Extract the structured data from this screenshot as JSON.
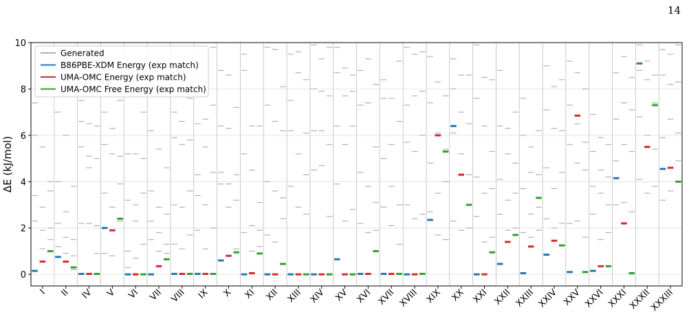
{
  "page_number": "14",
  "chart_data": {
    "type": "energy-levels",
    "ylabel": "ΔE (kJ/mol)",
    "categories": [
      "I",
      "II",
      "IV",
      "V",
      "VI",
      "VII",
      "VIII",
      "IX",
      "X",
      "XI",
      "XII",
      "XIII",
      "XIV",
      "XV",
      "XVI",
      "XVII",
      "XVIII",
      "XIX",
      "XX",
      "XXI",
      "XXII",
      "XXIII",
      "XXIV",
      "XXV",
      "XXVI",
      "XXXI",
      "XXXII",
      "XXXIII"
    ],
    "ylim": [
      -0.5,
      10
    ],
    "yticks": [
      0,
      2,
      4,
      6,
      8,
      10
    ],
    "grid": true,
    "legend": "upper left",
    "series": [
      {
        "name": "Generated",
        "color": "#b0b0b0",
        "values": [
          [
            [
              7.4,
              6.0,
              3.4,
              2.3
            ],
            [
              5.5,
              2.9,
              1.9,
              1.1
            ],
            [
              4.0,
              3.6,
              2.0,
              1.5
            ]
          ],
          [
            [
              7.0,
              4.0,
              2.2,
              1.2
            ],
            [
              6.0,
              2.7,
              1.6,
              0.9
            ],
            [
              3.8,
              1.5,
              0.8,
              0.2
            ]
          ],
          [
            [
              7.5,
              6.6,
              5.5,
              2.2
            ],
            [
              6.5,
              5.1,
              4.6,
              2.2
            ],
            [
              6.4,
              5.0,
              2.1,
              0.9
            ]
          ],
          [
            [
              7.0,
              5.6,
              3.5,
              0.9
            ],
            [
              6.3,
              5.2,
              2.9,
              0.8
            ],
            [
              7.5,
              5.1,
              3.9,
              2.3
            ]
          ],
          [
            [
              5.2,
              3.2,
              1.0,
              0.3
            ],
            [
              5.2,
              3.0,
              2.3,
              0.7
            ],
            [
              7.0,
              5.0,
              3.5,
              1.3
            ]
          ],
          [
            [
              6.2,
              3.6,
              2.3,
              1.5
            ],
            [
              5.4,
              2.9,
              1.8,
              1.0
            ],
            [
              4.6,
              2.6,
              1.3,
              0.9
            ]
          ],
          [
            [
              7.0,
              5.9,
              3.0,
              1.3
            ],
            [
              6.6,
              5.6,
              2.9,
              1.1
            ],
            [
              7.6,
              5.8,
              3.6,
              1.7
            ]
          ],
          [
            [
              6.5,
              4.3,
              3.4,
              1.9
            ],
            [
              6.7,
              5.5,
              3.0,
              1.1
            ],
            [
              9.8,
              7.3,
              4.4,
              2.0
            ]
          ],
          [
            [
              8.8,
              6.4,
              4.4,
              3.9
            ],
            [
              8.6,
              6.3,
              3.9,
              2.9
            ],
            [
              7.2,
              4.3,
              3.2,
              1.1
            ]
          ],
          [
            [
              9.5,
              8.8,
              5.2,
              1.8
            ],
            [
              6.4,
              4.5,
              2.1,
              1.0
            ],
            [
              6.4,
              3.1,
              1.9,
              1.2
            ]
          ],
          [
            [
              9.8,
              7.3,
              4.0,
              1.7
            ],
            [
              9.7,
              6.6,
              3.6,
              1.4
            ],
            [
              8.1,
              6.2,
              3.3,
              2.4
            ]
          ],
          [
            [
              9.5,
              7.5,
              6.2,
              3.8
            ],
            [
              9.6,
              8.7,
              5.2,
              2.9
            ],
            [
              8.4,
              6.1,
              4.3,
              2.6
            ]
          ],
          [
            [
              9.9,
              8.0,
              6.2,
              4.5
            ],
            [
              9.3,
              7.9,
              6.2,
              4.7
            ],
            [
              9.8,
              7.7,
              5.6,
              2.5
            ]
          ],
          [
            [
              9.8,
              8.7,
              6.4,
              3.9
            ],
            [
              8.9,
              7.7,
              5.6,
              2.3
            ],
            [
              8.6,
              7.9,
              6.4,
              2.8
            ]
          ],
          [
            [
              8.8,
              7.3,
              4.4,
              2.2
            ],
            [
              9.3,
              7.4,
              3.8,
              1.8
            ],
            [
              8.2,
              5.5,
              3.1,
              1.9
            ]
          ],
          [
            [
              8.4,
              7.6,
              5.0,
              2.9
            ],
            [
              7.6,
              5.6,
              3.8,
              2.1
            ],
            [
              9.2,
              6.6,
              3.0,
              1.3
            ]
          ],
          [
            [
              9.8,
              7.3,
              5.7,
              3.0
            ],
            [
              9.5,
              7.7,
              5.3,
              2.4
            ],
            [
              9.6,
              7.9,
              6.0,
              2.6
            ]
          ],
          [
            [
              9.4,
              7.4,
              4.8,
              2.7
            ],
            [
              8.3,
              6.1,
              3.5,
              1.7
            ],
            [
              7.7,
              5.4,
              4.0,
              1.5
            ]
          ],
          [
            [
              9.3,
              8.0,
              6.1,
              2.3
            ],
            [
              8.6,
              7.0,
              5.2,
              1.9
            ],
            [
              8.6,
              6.5,
              4.3,
              2.0
            ]
          ],
          [
            [
              9.9,
              7.6,
              4.2,
              2.5
            ],
            [
              8.5,
              6.4,
              3.5,
              1.4
            ],
            [
              8.4,
              5.3,
              3.7,
              1.6
            ]
          ],
          [
            [
              8.8,
              6.4,
              4.1,
              2.6
            ],
            [
              6.3,
              5.2,
              3.2,
              1.9
            ],
            [
              7.0,
              4.8,
              3.5,
              2.0
            ]
          ],
          [
            [
              7.6,
              6.0,
              3.7,
              1.8
            ],
            [
              5.5,
              4.4,
              2.6,
              1.6
            ],
            [
              6.2,
              4.3,
              2.9,
              1.9
            ]
          ],
          [
            [
              9.0,
              7.1,
              4.6,
              2.4
            ],
            [
              8.1,
              6.3,
              3.7,
              2.0
            ],
            [
              8.4,
              6.2,
              4.4,
              2.2
            ]
          ],
          [
            [
              9.2,
              7.3,
              5.6,
              2.2
            ],
            [
              8.7,
              6.5,
              4.8,
              2.3
            ],
            [
              8.0,
              5.7,
              4.5,
              1.6
            ]
          ],
          [
            [
              6.9,
              5.3,
              3.8,
              2.6
            ],
            [
              5.9,
              4.5,
              3.5,
              1.5
            ],
            [
              5.6,
              4.2,
              3.0,
              1.8
            ]
          ],
          [
            [
              8.7,
              6.7,
              4.9,
              3.0
            ],
            [
              9.4,
              7.4,
              5.6,
              3.1
            ],
            [
              8.5,
              7.1,
              5.3,
              2.7
            ]
          ],
          [
            [
              9.9,
              8.8,
              6.8,
              4.1
            ],
            [
              9.2,
              8.4,
              6.0,
              3.5
            ],
            [
              8.6,
              7.4,
              5.4,
              3.8
            ]
          ],
          [
            [
              9.7,
              8.6,
              5.9,
              3.2
            ],
            [
              9.5,
              8.2,
              6.7,
              3.6
            ],
            [
              9.9,
              8.3,
              6.1,
              4.9
            ]
          ]
        ]
      },
      {
        "name": "B86PBE-XDM Energy (exp match)",
        "color": "#1f77b4",
        "values": [
          0.15,
          0.75,
          0.02,
          2.0,
          0,
          0,
          0.02,
          0.02,
          0.6,
          0,
          0,
          0,
          0,
          0.65,
          0.02,
          0.02,
          0,
          2.35,
          6.4,
          0,
          0.45,
          0.05,
          0.85,
          0.1,
          0.15,
          4.15,
          9.1,
          4.55
        ]
      },
      {
        "name": "UMA-OMC Energy (exp match)",
        "color": "#d62728",
        "values": [
          0.55,
          0.55,
          0.02,
          1.9,
          0,
          0.35,
          0.02,
          0.02,
          0.8,
          0.05,
          0,
          0,
          0,
          0,
          0.02,
          0.02,
          0,
          6.0,
          4.3,
          0,
          1.4,
          1.2,
          1.45,
          6.85,
          0.35,
          2.2,
          5.5,
          4.6
        ]
      },
      {
        "name": "UMA-OMC Free Energy (exp match)",
        "color": "#2ca02c",
        "values": [
          1.0,
          0.3,
          0.02,
          2.4,
          0,
          0.65,
          0.02,
          0.02,
          0.95,
          0.9,
          0.45,
          0,
          0,
          0,
          1.0,
          0.02,
          0.02,
          5.3,
          3.0,
          0.95,
          1.7,
          3.3,
          1.25,
          0.1,
          0.35,
          0.05,
          7.3,
          4.0
        ]
      }
    ]
  }
}
